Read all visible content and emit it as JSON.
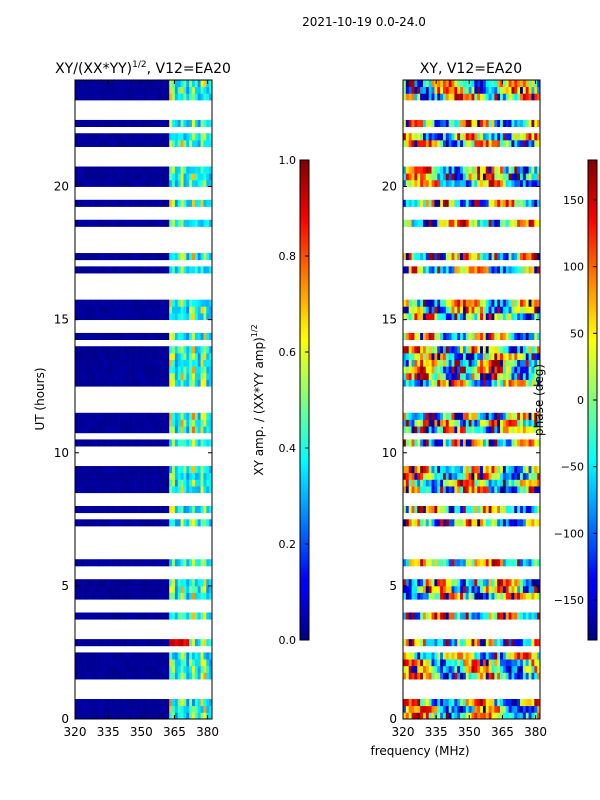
{
  "suptitle": "2021-10-19 0.0-24.0",
  "chart_data": [
    {
      "type": "heatmap",
      "title_prefix": "XY/(XX*YY)",
      "title_exponent": "1/2",
      "title_suffix": ", V12=EA20",
      "xlabel": "",
      "ylabel": "UT (hours)",
      "xlim": [
        320,
        382
      ],
      "ylim": [
        0,
        24
      ],
      "xticks": [
        320,
        335,
        350,
        365,
        380
      ],
      "yticks": [
        0,
        5,
        10,
        15,
        20
      ],
      "colormap": "jet",
      "gaps_hours": [
        0.9,
        1.15,
        1.35,
        2.55,
        3.25,
        3.6,
        4.1,
        4.35,
        5.3,
        5.55,
        6.25,
        6.6,
        6.7,
        7.0,
        7.7,
        8.25,
        9.6,
        10.0,
        10.55,
        11.65,
        12.0,
        12.45,
        14.2,
        14.55,
        14.9,
        15.9,
        16.05,
        16.3,
        16.6,
        17.2,
        17.65,
        18.0,
        18.45,
        18.8,
        19.15,
        19.75,
        20.95,
        21.25,
        22.2,
        22.55,
        22.8,
        23.15
      ]
    },
    {
      "type": "colorbar",
      "label": "XY amp. / (XX*YY amp)",
      "label_exponent": "1/2",
      "range": [
        0.0,
        1.0
      ],
      "ticks": [
        "0.0",
        "0.2",
        "0.4",
        "0.6",
        "0.8",
        "1.0"
      ],
      "colormap": "jet"
    },
    {
      "type": "heatmap",
      "title": "XY, V12=EA20",
      "xlabel": "frequency (MHz)",
      "ylabel": "",
      "xlim": [
        320,
        382
      ],
      "ylim": [
        0,
        24
      ],
      "xticks": [
        320,
        335,
        350,
        365,
        380
      ],
      "yticks": [
        0,
        5,
        10,
        15,
        20
      ],
      "colormap": "jet"
    },
    {
      "type": "colorbar",
      "label": "phase (deg)",
      "range": [
        -180,
        180
      ],
      "ticks": [
        -150,
        -100,
        -50,
        0,
        50,
        100,
        150
      ],
      "colormap": "jet"
    }
  ]
}
